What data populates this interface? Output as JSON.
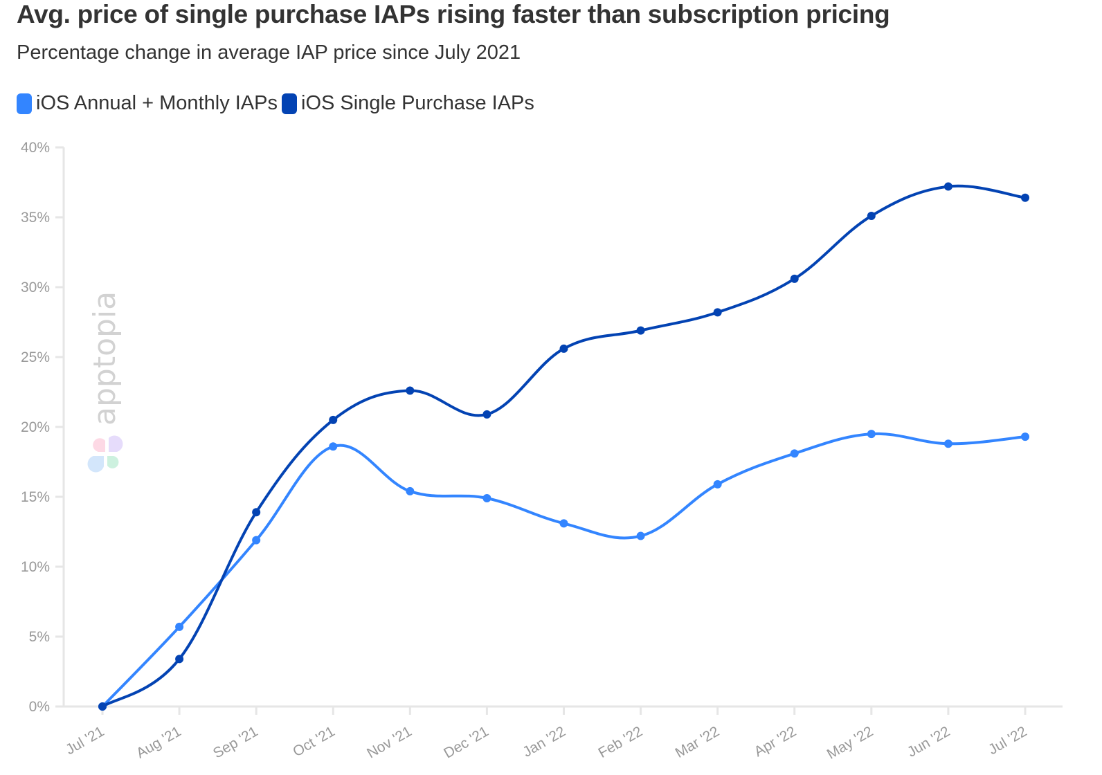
{
  "title": "Avg. price of single purchase IAPs rising faster than subscription pricing",
  "subtitle": "Percentage change in average IAP price since July 2021",
  "watermark": "apptopia",
  "chart_data": {
    "type": "line",
    "title": "Avg. price of single purchase IAPs rising faster than subscription pricing",
    "subtitle": "Percentage change in average IAP price since July 2021",
    "categories": [
      "Jul '21",
      "Aug '21",
      "Sep '21",
      "Oct '21",
      "Nov '21",
      "Dec '21",
      "Jan '22",
      "Feb '22",
      "Mar '22",
      "Apr '22",
      "May '22",
      "Jun '22",
      "Jul '22"
    ],
    "ylim": [
      0,
      40
    ],
    "yticks": [
      0,
      5,
      10,
      15,
      20,
      25,
      30,
      35,
      40
    ],
    "ytick_labels": [
      "0%",
      "5%",
      "10%",
      "15%",
      "20%",
      "25%",
      "30%",
      "35%",
      "40%"
    ],
    "grid": false,
    "legend_position": "top-left",
    "smooth": true,
    "series": [
      {
        "name": "iOS Annual + Monthly IAPs",
        "color": "#3385ff",
        "values": [
          0,
          5.7,
          11.9,
          18.6,
          15.4,
          14.9,
          13.1,
          12.2,
          15.9,
          18.1,
          19.5,
          18.8,
          19.3
        ]
      },
      {
        "name": "iOS Single Purchase IAPs",
        "color": "#0343b3",
        "values": [
          0,
          3.4,
          13.9,
          20.5,
          22.6,
          20.9,
          25.6,
          26.9,
          28.2,
          30.6,
          35.1,
          37.2,
          36.4
        ]
      }
    ]
  }
}
